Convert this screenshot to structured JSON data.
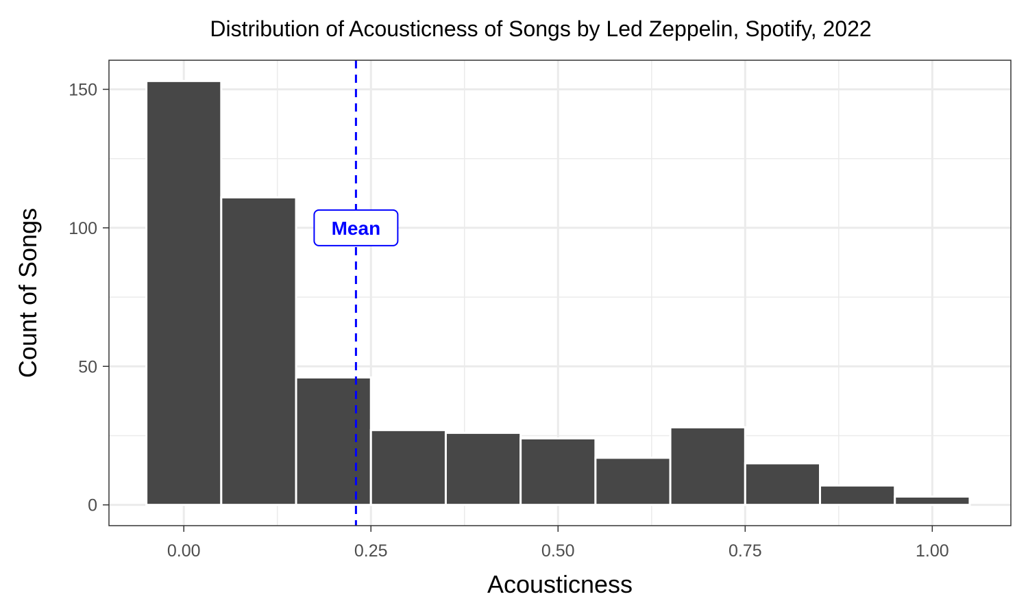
{
  "chart_data": {
    "type": "bar",
    "title": "Distribution of Acousticness of Songs by Led Zeppelin, Spotify, 2022",
    "xlabel": "Acousticness",
    "ylabel": "Count of Songs",
    "bin_width": 0.1,
    "bin_centers": [
      0.0,
      0.1,
      0.2,
      0.3,
      0.4,
      0.5,
      0.6,
      0.7,
      0.8,
      0.9,
      1.0
    ],
    "values": [
      153,
      111,
      46,
      27,
      26,
      24,
      17,
      28,
      15,
      7,
      3
    ],
    "xlim": [
      -0.1,
      1.105
    ],
    "ylim": [
      -7.5,
      160.5
    ],
    "x_ticks": [
      0.0,
      0.25,
      0.5,
      0.75,
      1.0
    ],
    "x_tick_labels": [
      "0.00",
      "0.25",
      "0.50",
      "0.75",
      "1.00"
    ],
    "y_ticks": [
      0,
      50,
      100,
      150
    ],
    "y_tick_labels": [
      "0",
      "50",
      "100",
      "150"
    ],
    "grid": true,
    "mean": {
      "value": 0.23,
      "label": "Mean",
      "label_y": 100,
      "color": "#0000ff"
    },
    "bar_color": "#474747"
  }
}
